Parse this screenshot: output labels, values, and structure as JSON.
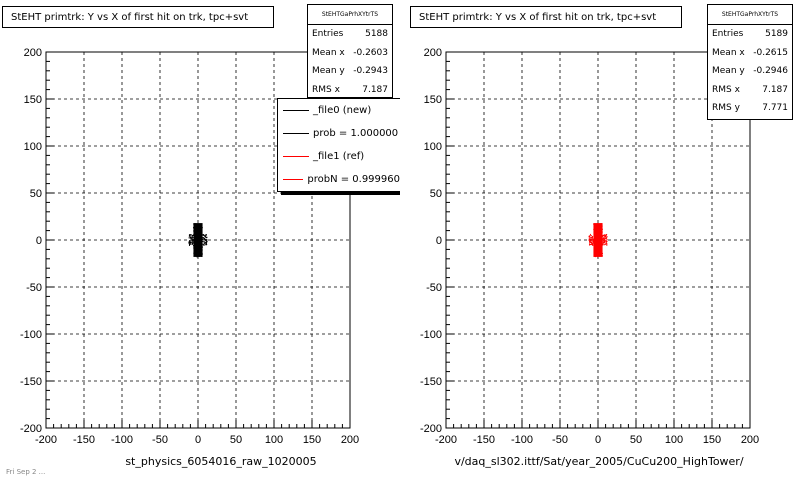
{
  "chart_data": [
    {
      "type": "scatter",
      "title": "StEHT primtrk: Y vs X of first hit on trk, tpc+svt",
      "xlim": [
        -200,
        200
      ],
      "ylim": [
        -200,
        200
      ],
      "x_ticks": [
        "-200",
        "-150",
        "-100",
        "-50",
        "0",
        "50",
        "100",
        "150",
        "200"
      ],
      "y_ticks": [
        "200",
        "150",
        "100",
        "50",
        "0",
        "-50",
        "-100",
        "-150",
        "-200"
      ],
      "xlabel": "st_physics_6054016_raw_1020005",
      "grid": true,
      "marker_color": "#000000",
      "points": {
        "x_range": [
          -12,
          12
        ],
        "y_range": [
          -18,
          18
        ],
        "count": 5188
      },
      "stats": {
        "header": "StEHTGaPrhXYtrTS",
        "rows": [
          {
            "label": "Entries",
            "value": "5188"
          },
          {
            "label": "Mean x",
            "value": "-0.2603"
          },
          {
            "label": "Mean y",
            "value": "-0.2943"
          },
          {
            "label": "RMS x",
            "value": "7.187"
          }
        ]
      },
      "legend": {
        "placement": "right",
        "entries": [
          {
            "label": "_file0 (new)",
            "color": "#000000"
          },
          {
            "label": "prob = 1.000000",
            "color": "#000000"
          },
          {
            "label": "_file1 (ref)",
            "color": "#ff0000"
          },
          {
            "label": "probN = 0.999960",
            "color": "#ff0000"
          }
        ]
      }
    },
    {
      "type": "scatter",
      "title": "StEHT primtrk: Y vs X of first hit on trk, tpc+svt",
      "xlim": [
        -200,
        200
      ],
      "ylim": [
        -200,
        200
      ],
      "x_ticks": [
        "-200",
        "-150",
        "-100",
        "-50",
        "0",
        "50",
        "100",
        "150",
        "200"
      ],
      "y_ticks": [
        "200",
        "150",
        "100",
        "50",
        "0",
        "-50",
        "-100",
        "-150",
        "-200"
      ],
      "xlabel": "v/daq_sl302.ittf/Sat/year_2005/CuCu200_HighTower/",
      "grid": true,
      "marker_color": "#ff0000",
      "points": {
        "x_range": [
          -12,
          12
        ],
        "y_range": [
          -18,
          18
        ],
        "count": 5189
      },
      "stats": {
        "header": "StEHTGaPrhXYtrTS",
        "rows": [
          {
            "label": "Entries",
            "value": "5189"
          },
          {
            "label": "Mean x",
            "value": "-0.2615"
          },
          {
            "label": "Mean y",
            "value": "-0.2946"
          },
          {
            "label": "RMS x",
            "value": "7.187"
          },
          {
            "label": "RMS y",
            "value": "7.771"
          }
        ]
      }
    }
  ],
  "footnote": "Fri Sep 2 ..."
}
